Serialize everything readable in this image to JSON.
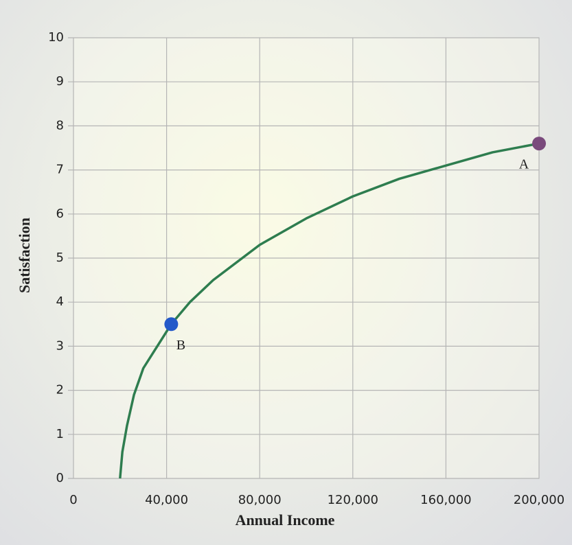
{
  "chart_data": {
    "type": "line",
    "x_label": "Annual Income",
    "y_label": "Satisfaction",
    "xlim": [
      0,
      200000
    ],
    "ylim": [
      0,
      10
    ],
    "xticks": [
      0,
      {
        "value": 40000,
        "label": "40,000"
      },
      {
        "value": 80000,
        "label": "80,000"
      },
      {
        "value": 120000,
        "label": "120,000"
      },
      {
        "value": 160000,
        "label": "160,000"
      },
      {
        "value": 200000,
        "label": "200,000"
      }
    ],
    "yticks": [
      0,
      1,
      2,
      3,
      4,
      5,
      6,
      7,
      8,
      9,
      10
    ],
    "grid": true,
    "series": [
      {
        "color": "#2e7d4f",
        "x": [
          20000,
          21000,
          23000,
          26000,
          30000,
          36000,
          42000,
          50000,
          60000,
          80000,
          100000,
          120000,
          140000,
          160000,
          180000,
          200000
        ],
        "values": [
          0,
          0.6,
          1.2,
          1.9,
          2.5,
          3.0,
          3.5,
          4.0,
          4.5,
          5.3,
          5.9,
          6.4,
          6.8,
          7.1,
          7.4,
          7.6
        ]
      }
    ],
    "points": [
      {
        "label": "A",
        "x": 200000,
        "y": 7.6,
        "color": "#7a4a7c"
      },
      {
        "label": "B",
        "x": 42000,
        "y": 3.5,
        "color": "#2459c9"
      }
    ]
  }
}
